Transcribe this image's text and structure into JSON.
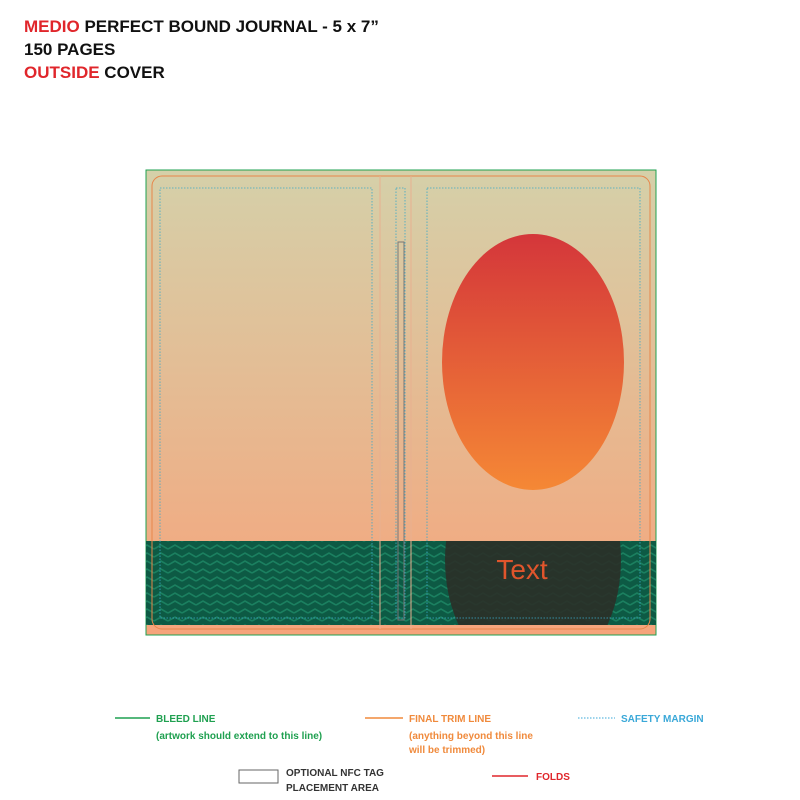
{
  "header": {
    "line1": {
      "highlight": "MEDIO",
      "rest": "PERFECT BOUND JOURNAL - 5 x 7”"
    },
    "line2": "150 PAGES",
    "line3": {
      "highlight": "OUTSIDE",
      "rest": "COVER"
    }
  },
  "cover": {
    "text": "Text"
  },
  "legend": {
    "bleed": {
      "label": "BLEED LINE",
      "note": "(artwork should extend to this line)"
    },
    "trim": {
      "label": "FINAL TRIM LINE",
      "note1": "(anything beyond this line",
      "note2": "will be trimmed)"
    },
    "safety": {
      "label": "SAFETY MARGIN"
    },
    "nfc": {
      "label1": "OPTIONAL NFC TAG",
      "label2": "PLACEMENT AREA"
    },
    "folds": {
      "label": "FOLDS"
    }
  }
}
